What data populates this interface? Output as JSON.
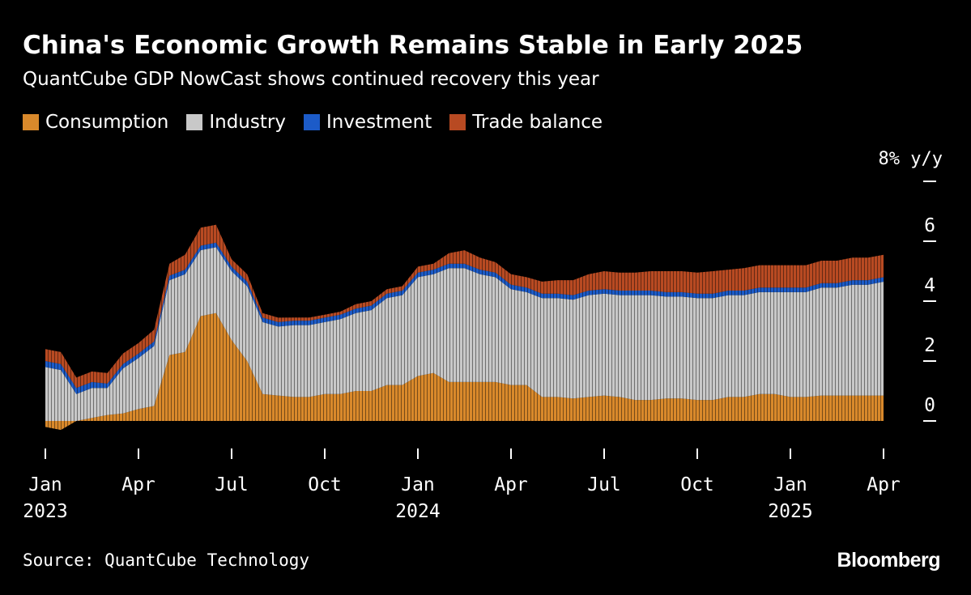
{
  "header": {
    "title": "China's Economic Growth Remains Stable in Early 2025",
    "subtitle": "QuantCube GDP NowCast shows continued recovery this year"
  },
  "footer": {
    "source": "Source: QuantCube Technology",
    "brand": "Bloomberg"
  },
  "chart_data": {
    "type": "area",
    "stacked": true,
    "title": "China's Economic Growth Remains Stable in Early 2025",
    "subtitle": "QuantCube GDP NowCast shows continued recovery this year",
    "yunit_label": "8% y/y",
    "ylim": [
      -1,
      8
    ],
    "y_ticks": [
      0,
      2,
      4,
      6
    ],
    "legend_position": "top-left",
    "x": [
      "2023-01",
      "2023-01-15",
      "2023-02",
      "2023-02-15",
      "2023-03",
      "2023-03-15",
      "2023-04",
      "2023-04-15",
      "2023-05",
      "2023-05-15",
      "2023-06",
      "2023-06-15",
      "2023-07",
      "2023-07-15",
      "2023-08",
      "2023-08-15",
      "2023-09",
      "2023-09-15",
      "2023-10",
      "2023-10-15",
      "2023-11",
      "2023-11-15",
      "2023-12",
      "2023-12-15",
      "2024-01",
      "2024-01-15",
      "2024-02",
      "2024-02-15",
      "2024-03",
      "2024-03-15",
      "2024-04",
      "2024-04-15",
      "2024-05",
      "2024-05-15",
      "2024-06",
      "2024-06-15",
      "2024-07",
      "2024-07-15",
      "2024-08",
      "2024-08-15",
      "2024-09",
      "2024-09-15",
      "2024-10",
      "2024-10-15",
      "2024-11",
      "2024-11-15",
      "2024-12",
      "2024-12-15",
      "2025-01",
      "2025-01-15",
      "2025-02",
      "2025-02-15",
      "2025-03",
      "2025-03-15",
      "2025-04"
    ],
    "x_ticks": [
      {
        "x": "2023-01",
        "label": "Jan",
        "year": "2023"
      },
      {
        "x": "2023-04",
        "label": "Apr",
        "year": ""
      },
      {
        "x": "2023-07",
        "label": "Jul",
        "year": ""
      },
      {
        "x": "2023-10",
        "label": "Oct",
        "year": ""
      },
      {
        "x": "2024-01",
        "label": "Jan",
        "year": "2024"
      },
      {
        "x": "2024-04",
        "label": "Apr",
        "year": ""
      },
      {
        "x": "2024-07",
        "label": "Jul",
        "year": ""
      },
      {
        "x": "2024-10",
        "label": "Oct",
        "year": ""
      },
      {
        "x": "2025-01",
        "label": "Jan",
        "year": "2025"
      },
      {
        "x": "2025-04",
        "label": "Apr",
        "year": ""
      }
    ],
    "series": [
      {
        "name": "Consumption",
        "color": "#D9892B",
        "values": [
          -0.2,
          -0.3,
          0.0,
          0.1,
          0.2,
          0.25,
          0.4,
          0.5,
          2.2,
          2.3,
          3.5,
          3.6,
          2.7,
          2.0,
          0.9,
          0.85,
          0.8,
          0.8,
          0.9,
          0.9,
          1.0,
          1.0,
          1.2,
          1.2,
          1.5,
          1.6,
          1.3,
          1.3,
          1.3,
          1.3,
          1.2,
          1.2,
          0.8,
          0.8,
          0.75,
          0.8,
          0.85,
          0.8,
          0.7,
          0.7,
          0.75,
          0.75,
          0.7,
          0.7,
          0.8,
          0.8,
          0.9,
          0.9,
          0.8,
          0.8,
          0.85,
          0.85,
          0.85,
          0.85,
          0.85
        ]
      },
      {
        "name": "Industry",
        "color": "#C8C8C8",
        "values": [
          1.8,
          1.7,
          0.9,
          1.0,
          0.9,
          1.5,
          1.7,
          2.0,
          2.5,
          2.6,
          2.2,
          2.2,
          2.3,
          2.5,
          2.4,
          2.3,
          2.4,
          2.4,
          2.4,
          2.5,
          2.6,
          2.7,
          2.9,
          3.0,
          3.3,
          3.3,
          3.8,
          3.8,
          3.6,
          3.5,
          3.2,
          3.1,
          3.3,
          3.3,
          3.3,
          3.4,
          3.4,
          3.4,
          3.5,
          3.5,
          3.4,
          3.4,
          3.4,
          3.4,
          3.4,
          3.4,
          3.4,
          3.4,
          3.5,
          3.5,
          3.6,
          3.6,
          3.7,
          3.7,
          3.8
        ]
      },
      {
        "name": "Investment",
        "color": "#1C5BC8",
        "values": [
          0.2,
          0.2,
          0.2,
          0.2,
          0.15,
          0.15,
          0.15,
          0.15,
          0.15,
          0.15,
          0.15,
          0.15,
          0.15,
          0.15,
          0.15,
          0.15,
          0.15,
          0.15,
          0.15,
          0.15,
          0.15,
          0.15,
          0.15,
          0.15,
          0.15,
          0.15,
          0.15,
          0.15,
          0.15,
          0.15,
          0.15,
          0.15,
          0.15,
          0.15,
          0.15,
          0.15,
          0.15,
          0.15,
          0.15,
          0.15,
          0.15,
          0.15,
          0.15,
          0.15,
          0.15,
          0.15,
          0.15,
          0.15,
          0.15,
          0.15,
          0.15,
          0.15,
          0.15,
          0.15,
          0.15
        ]
      },
      {
        "name": "Trade balance",
        "color": "#B84A22",
        "values": [
          0.4,
          0.4,
          0.35,
          0.35,
          0.35,
          0.35,
          0.35,
          0.4,
          0.4,
          0.5,
          0.6,
          0.6,
          0.25,
          0.25,
          0.15,
          0.15,
          0.1,
          0.1,
          0.1,
          0.1,
          0.15,
          0.15,
          0.15,
          0.15,
          0.2,
          0.2,
          0.35,
          0.45,
          0.4,
          0.35,
          0.35,
          0.35,
          0.4,
          0.45,
          0.5,
          0.55,
          0.6,
          0.6,
          0.6,
          0.65,
          0.7,
          0.7,
          0.7,
          0.75,
          0.7,
          0.75,
          0.75,
          0.75,
          0.75,
          0.75,
          0.75,
          0.75,
          0.75,
          0.75,
          0.75
        ]
      }
    ]
  }
}
